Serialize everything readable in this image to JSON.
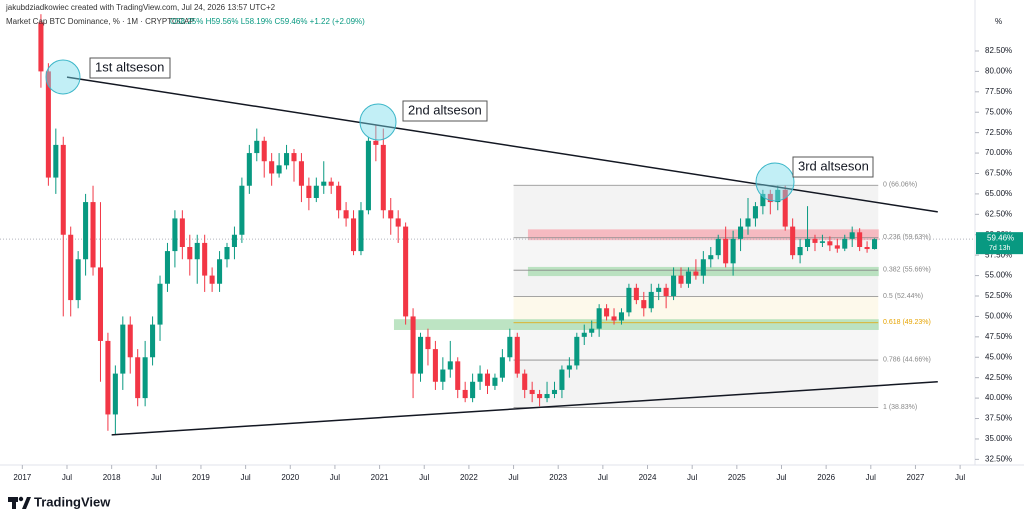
{
  "chart_data": {
    "type": "candlestick",
    "credit": "jakubdziadkowiec created with TradingView.com, Jul 24, 2026 13:57 UTC+2",
    "title": "Market Cap BTC Dominance, % · 1M · CRYPTOCAP",
    "ohlc_summary": "O58.25% H59.56% L58.19% C59.46% +1.22 (+2.09%)",
    "axis_unit": "%",
    "last_price": {
      "value": 59.46,
      "label": "59.46%"
    },
    "countdown": "7d 13h",
    "footer": "TradingView",
    "up_color": "#089981",
    "down_color": "#f23645",
    "xlim": [
      "2016-10",
      "2027-09"
    ],
    "ylim": [
      31.81,
      88.74
    ],
    "yticks": [
      {
        "value": 32.5,
        "label": "32.50%"
      },
      {
        "value": 35,
        "label": "35.00%"
      },
      {
        "value": 37.5,
        "label": "37.50%"
      },
      {
        "value": 40,
        "label": "40.00%"
      },
      {
        "value": 42.5,
        "label": "42.50%"
      },
      {
        "value": 45,
        "label": "45.00%"
      },
      {
        "value": 47.5,
        "label": "47.50%"
      },
      {
        "value": 50,
        "label": "50.00%"
      },
      {
        "value": 52.5,
        "label": "52.50%"
      },
      {
        "value": 55,
        "label": "55.00%"
      },
      {
        "value": 57.5,
        "label": "57.50%"
      },
      {
        "value": 60,
        "label": "60.00%"
      },
      {
        "value": 62.5,
        "label": "62.50%"
      },
      {
        "value": 65,
        "label": "65.00%"
      },
      {
        "value": 67.5,
        "label": "67.50%"
      },
      {
        "value": 70,
        "label": "70.00%"
      },
      {
        "value": 72.5,
        "label": "72.50%"
      },
      {
        "value": 75,
        "label": "75.00%"
      },
      {
        "value": 77.5,
        "label": "77.50%"
      },
      {
        "value": 80,
        "label": "80.00%"
      },
      {
        "value": 82.5,
        "label": "82.50%"
      }
    ],
    "xticks": [
      {
        "value": "2017-01",
        "label": "2017"
      },
      {
        "value": "2017-07",
        "label": "Jul"
      },
      {
        "value": "2018-01",
        "label": "2018"
      },
      {
        "value": "2018-07",
        "label": "Jul"
      },
      {
        "value": "2019-01",
        "label": "2019"
      },
      {
        "value": "2019-07",
        "label": "Jul"
      },
      {
        "value": "2020-01",
        "label": "2020"
      },
      {
        "value": "2020-07",
        "label": "Jul"
      },
      {
        "value": "2021-01",
        "label": "2021"
      },
      {
        "value": "2021-07",
        "label": "Jul"
      },
      {
        "value": "2022-01",
        "label": "2022"
      },
      {
        "value": "2022-07",
        "label": "Jul"
      },
      {
        "value": "2023-01",
        "label": "2023"
      },
      {
        "value": "2023-07",
        "label": "Jul"
      },
      {
        "value": "2024-01",
        "label": "2024"
      },
      {
        "value": "2024-07",
        "label": "Jul"
      },
      {
        "value": "2025-01",
        "label": "2025"
      },
      {
        "value": "2025-07",
        "label": "Jul"
      },
      {
        "value": "2026-01",
        "label": "2026"
      },
      {
        "value": "2026-07",
        "label": "Jul"
      },
      {
        "value": "2027-01",
        "label": "2027"
      },
      {
        "value": "2027-07",
        "label": "Jul"
      }
    ],
    "x": [
      "2017-03",
      "2017-04",
      "2017-05",
      "2017-06",
      "2017-07",
      "2017-08",
      "2017-09",
      "2017-10",
      "2017-11",
      "2017-12",
      "2018-01",
      "2018-02",
      "2018-03",
      "2018-04",
      "2018-05",
      "2018-06",
      "2018-07",
      "2018-08",
      "2018-09",
      "2018-10",
      "2018-11",
      "2018-12",
      "2019-01",
      "2019-02",
      "2019-03",
      "2019-04",
      "2019-05",
      "2019-06",
      "2019-07",
      "2019-08",
      "2019-09",
      "2019-10",
      "2019-11",
      "2019-12",
      "2020-01",
      "2020-02",
      "2020-03",
      "2020-04",
      "2020-05",
      "2020-06",
      "2020-07",
      "2020-08",
      "2020-09",
      "2020-10",
      "2020-11",
      "2020-12",
      "2021-01",
      "2021-02",
      "2021-03",
      "2021-04",
      "2021-05",
      "2021-06",
      "2021-07",
      "2021-08",
      "2021-09",
      "2021-10",
      "2021-11",
      "2021-12",
      "2022-01",
      "2022-02",
      "2022-03",
      "2022-04",
      "2022-05",
      "2022-06",
      "2022-07",
      "2022-08",
      "2022-09",
      "2022-10",
      "2022-11",
      "2022-12",
      "2023-01",
      "2023-02",
      "2023-03",
      "2023-04",
      "2023-05",
      "2023-06",
      "2023-07",
      "2023-08",
      "2023-09",
      "2023-10",
      "2023-11",
      "2023-12",
      "2024-01",
      "2024-02",
      "2024-03",
      "2024-04",
      "2024-05",
      "2024-06",
      "2024-07",
      "2024-08",
      "2024-09",
      "2024-10",
      "2024-11",
      "2024-12",
      "2025-01",
      "2025-02",
      "2025-03",
      "2025-04",
      "2025-05",
      "2025-06",
      "2025-07",
      "2025-08",
      "2025-09",
      "2025-10",
      "2025-11",
      "2025-12",
      "2026-01",
      "2026-02",
      "2026-03",
      "2026-04",
      "2026-05",
      "2026-06",
      "2026-07"
    ],
    "open": [
      86,
      80,
      67,
      71,
      60,
      52,
      57,
      64,
      56,
      47,
      38,
      43,
      49,
      45,
      40,
      45,
      49,
      54,
      58,
      62,
      58.5,
      57,
      59,
      55,
      54,
      57,
      58.5,
      60,
      66,
      70,
      71.5,
      69,
      67.5,
      68.5,
      70,
      69,
      66,
      64.5,
      66,
      66.5,
      66,
      63,
      62,
      58,
      63,
      71.5,
      71,
      63,
      62,
      61,
      50,
      43,
      47.5,
      46,
      42,
      43.5,
      44.5,
      41,
      40,
      42,
      43,
      41.5,
      42.5,
      45,
      47.5,
      43,
      41,
      40.5,
      40,
      40.5,
      41,
      43.5,
      44,
      47.5,
      48,
      48.5,
      51,
      50,
      49.5,
      50.5,
      53.5,
      52,
      51,
      53,
      53.5,
      52.5,
      55,
      54,
      55.5,
      55,
      57,
      57.5,
      59.5,
      56.5,
      59.5,
      61,
      62,
      63.5,
      65,
      64,
      65.5,
      61,
      57.5,
      58.5,
      59.5,
      59,
      59.2,
      58.7,
      58.3,
      59.5,
      60.3,
      58.5,
      58.25
    ],
    "high": [
      87,
      81,
      73,
      72,
      61,
      58,
      65,
      66,
      64,
      48,
      44,
      50,
      50,
      46,
      47,
      50,
      55,
      59,
      63,
      63,
      60,
      60,
      60,
      56,
      58,
      59,
      61,
      67,
      71,
      73,
      72,
      70,
      70,
      71,
      70.5,
      70,
      67,
      67,
      69,
      67,
      66.5,
      64,
      63,
      64,
      72,
      73.5,
      73,
      64.5,
      63,
      61.5,
      51,
      48,
      48.5,
      47,
      45,
      47,
      45,
      42,
      43,
      44,
      43.5,
      43,
      46,
      48.5,
      48,
      43.5,
      42,
      41,
      42,
      42,
      44,
      45,
      48,
      49,
      49.5,
      51.5,
      51.5,
      51,
      51,
      54,
      54,
      53,
      54,
      54,
      54,
      56,
      56,
      56,
      57,
      58,
      58.5,
      60,
      61,
      60.5,
      62,
      64.5,
      64,
      65.5,
      65.5,
      66,
      66,
      62,
      59.5,
      63.5,
      60,
      60,
      59.8,
      59.5,
      60,
      61,
      60.8,
      59.2,
      59.56
    ],
    "low": [
      78,
      66,
      65,
      50,
      50,
      51,
      55,
      55,
      42,
      36,
      35.5,
      41,
      43,
      39,
      39,
      44,
      47,
      53,
      56,
      57,
      55,
      54,
      53,
      53,
      53,
      56,
      57,
      59,
      65,
      69,
      67,
      66,
      67,
      68,
      66.5,
      64,
      63,
      64,
      65,
      65,
      62,
      61,
      57.5,
      57.5,
      62.5,
      69,
      62,
      60,
      59,
      49,
      40,
      42,
      44,
      41,
      41,
      42.5,
      40,
      39.5,
      39.5,
      41,
      40.5,
      41,
      42,
      44.5,
      42.5,
      40,
      39.5,
      39,
      39.5,
      40,
      40,
      42.5,
      43.5,
      46.5,
      47.5,
      47.5,
      49.5,
      49,
      49,
      50,
      51.5,
      50,
      50.5,
      52,
      51,
      52,
      53.5,
      53.5,
      54.5,
      54,
      56,
      57,
      56,
      55,
      58,
      60,
      61,
      62.5,
      62.5,
      63,
      60.5,
      57,
      56.5,
      58,
      58,
      58.5,
      58,
      57.8,
      58,
      58.5,
      58,
      57.8,
      58.19
    ],
    "close": [
      80,
      67,
      71,
      60,
      52,
      57,
      64,
      56,
      47,
      38,
      43,
      49,
      45,
      40,
      45,
      49,
      54,
      58,
      62,
      58.5,
      57,
      59,
      55,
      54,
      57,
      58.5,
      60,
      66,
      70,
      71.5,
      69,
      67.5,
      68.5,
      70,
      69,
      66,
      64.5,
      66,
      66.5,
      66,
      63,
      62,
      58,
      63,
      71.5,
      71,
      63,
      62,
      61,
      50,
      43,
      47.5,
      46,
      42,
      43.5,
      44.5,
      41,
      40,
      42,
      43,
      41.5,
      42.5,
      45,
      47.5,
      43,
      41,
      40.5,
      40,
      40.5,
      41,
      43.5,
      44,
      47.5,
      48,
      48.5,
      51,
      50,
      49.5,
      50.5,
      53.5,
      52,
      51,
      53,
      53.5,
      52.5,
      55,
      54,
      55.5,
      55,
      57,
      57.5,
      59.5,
      56.5,
      59.5,
      61,
      62,
      63.5,
      65,
      64,
      65.5,
      61,
      57.5,
      58.5,
      59.5,
      59,
      59.2,
      58.7,
      58.3,
      59.5,
      60.3,
      58.5,
      58.25,
      59.46
    ],
    "trendlines": [
      {
        "from": [
          "2017-07",
          79.3
        ],
        "to": [
          "2027-04",
          62.8
        ]
      },
      {
        "from": [
          "2018-01",
          35.5
        ],
        "to": [
          "2027-04",
          42.0
        ]
      }
    ],
    "zones": [
      {
        "from": "2022-09",
        "to": "2026-08",
        "bottom": 59.4,
        "top": 60.6,
        "color": "#f7a8b1"
      },
      {
        "from": "2022-09",
        "to": "2026-08",
        "bottom": 55.0,
        "top": 56.0,
        "color": "#a8dcb0"
      },
      {
        "from": "2021-03",
        "to": "2026-08",
        "bottom": 48.4,
        "top": 49.6,
        "color": "#a8dcb0"
      }
    ],
    "fib": {
      "from": "2022-07",
      "to": "2026-08",
      "levels": [
        {
          "value": 66.06,
          "label": "0 (66.06%)",
          "color": "#888888"
        },
        {
          "value": 59.63,
          "label": "0.236 (59.63%)",
          "color": "#888888"
        },
        {
          "value": 55.66,
          "label": "0.382 (55.66%)",
          "color": "#888888"
        },
        {
          "value": 52.44,
          "label": "0.5 (52.44%)",
          "color": "#888888"
        },
        {
          "value": 49.23,
          "label": "0.618 (49.23%)",
          "color": "#e6a300"
        },
        {
          "value": 44.66,
          "label": "0.786 (44.66%)",
          "color": "#888888"
        },
        {
          "value": 38.83,
          "label": "1 (38.83%)",
          "color": "#888888"
        }
      ]
    },
    "annotations": [
      "1st altseson",
      "2nd altseson",
      "3rd altseson"
    ]
  }
}
